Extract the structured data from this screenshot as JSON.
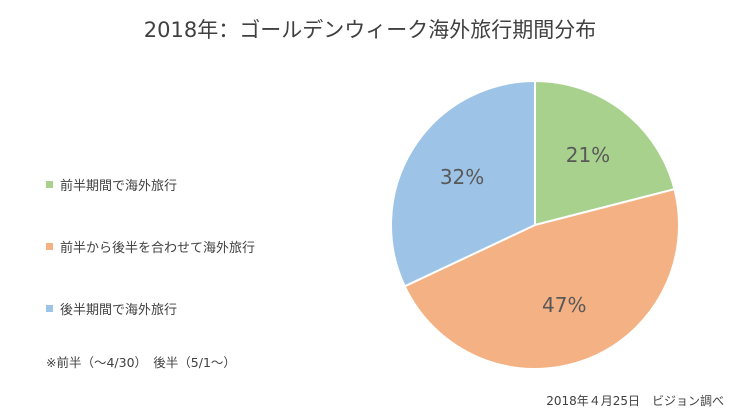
{
  "chart_data": {
    "type": "pie",
    "title": "2018年：ゴールデンウィーク海外旅行期間分布",
    "slices": [
      {
        "label": "前半期間で海外旅行",
        "value": 21,
        "value_label": "21%",
        "color": "#a9d18e"
      },
      {
        "label": "前半から後半を合わせて海外旅行",
        "value": 47,
        "value_label": "47%",
        "color": "#f4b183"
      },
      {
        "label": "後半期間で海外旅行",
        "value": 32,
        "value_label": "32%",
        "color": "#9dc3e6"
      }
    ],
    "legend_position": "left"
  },
  "note": "※前半（～4/30）　後半（5/1～）",
  "footer": "2018年４月25日　ビジョン調べ"
}
